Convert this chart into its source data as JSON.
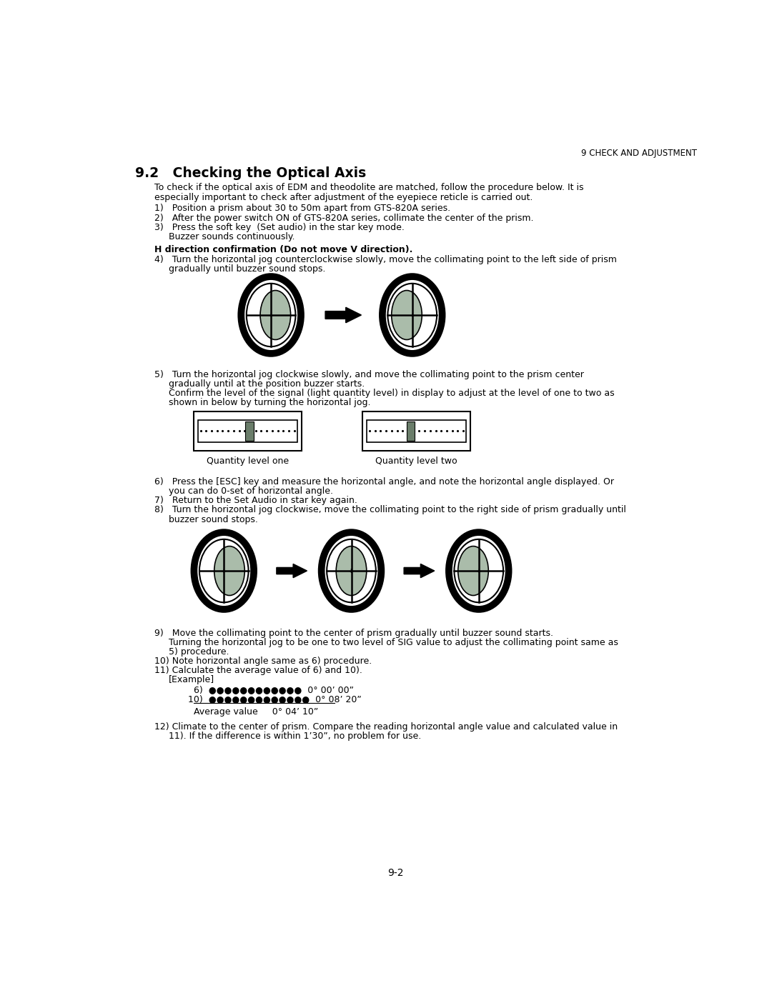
{
  "page_header": "9 CHECK AND ADJUSTMENT",
  "section_title": "9.2   Checking the Optical Axis",
  "bg_color": "#ffffff",
  "prism_color": "#aabcaa",
  "bar_color": "#6a7d6a",
  "page_number": "9-2"
}
